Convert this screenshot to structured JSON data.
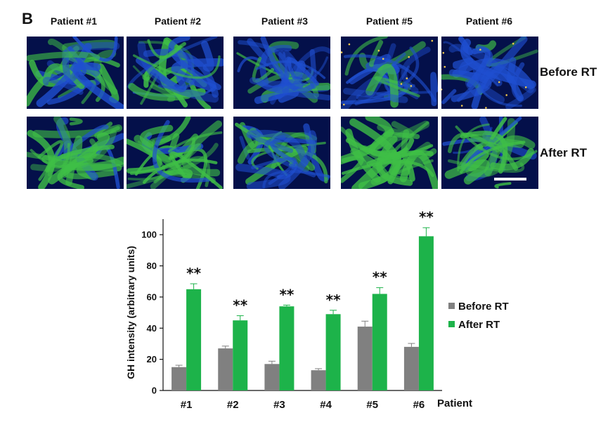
{
  "panel": {
    "letter": "B"
  },
  "micrographs": {
    "patients": [
      "Patient #1",
      "Patient #2",
      "Patient #3",
      "Patient #5",
      "Patient #6"
    ],
    "rows": [
      "Before RT",
      "After RT"
    ],
    "colors": {
      "background": "#04104a",
      "nuclei": "#1f4fd0",
      "gh_stain": "#3fbf46",
      "cells": "#f2c94c"
    }
  },
  "chart_data": {
    "type": "bar",
    "categories": [
      "#1",
      "#2",
      "#3",
      "#4",
      "#5",
      "#6"
    ],
    "xlabel": "Patient",
    "ylabel": "GH intensity (arbitrary units)",
    "ylim": [
      0,
      110
    ],
    "yticks": [
      0,
      20,
      40,
      60,
      80,
      100
    ],
    "series": [
      {
        "name": "Before RT",
        "color": "#808080",
        "values": [
          15,
          27,
          17,
          13,
          41,
          28
        ],
        "errors": [
          1.2,
          1.5,
          1.8,
          1.0,
          3.5,
          2.2
        ]
      },
      {
        "name": "After RT",
        "color": "#1db34a",
        "values": [
          65,
          45,
          54,
          49,
          62,
          99
        ],
        "errors": [
          3.5,
          3.0,
          0.8,
          2.5,
          4.0,
          5.5
        ]
      }
    ],
    "annotations": [
      "**",
      "**",
      "**",
      "**",
      "**",
      "**"
    ],
    "legend": "right"
  }
}
